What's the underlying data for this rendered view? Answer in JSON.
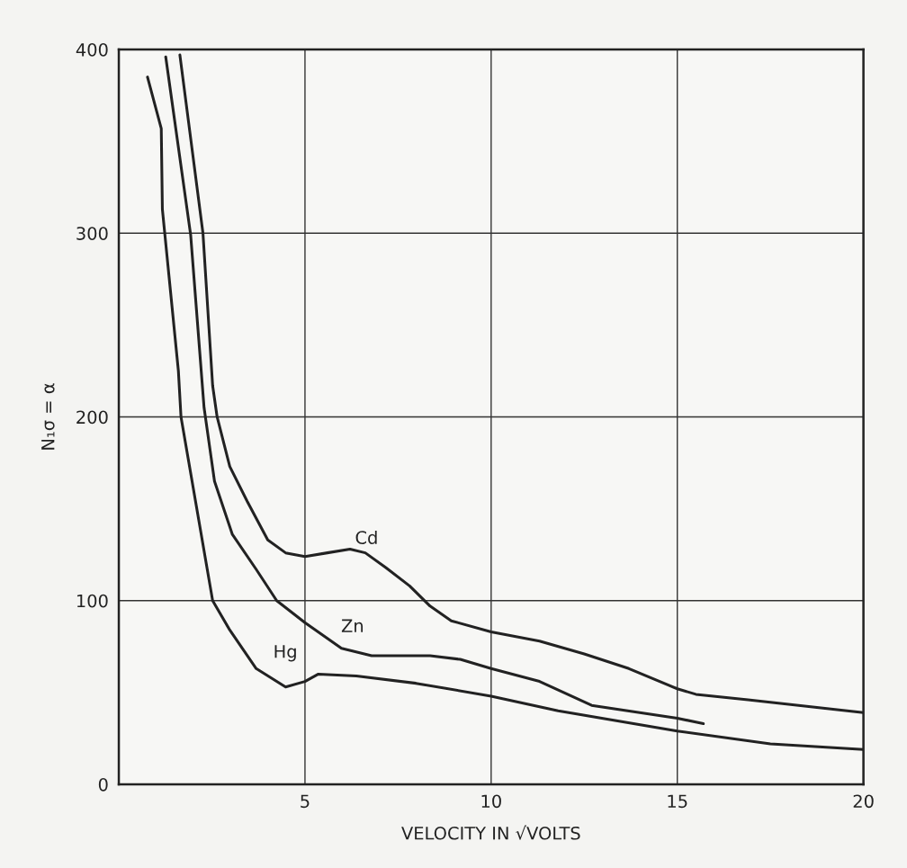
{
  "chart_data": {
    "type": "line",
    "xlabel": "VELOCITY IN √VOLTS",
    "ylabel": "N₁σ = α",
    "xlim": [
      0,
      20
    ],
    "xticks": [
      5,
      10,
      15,
      20
    ],
    "ylim": [
      0,
      400
    ],
    "yticks": [
      0,
      100,
      200,
      300,
      400
    ],
    "grid": true,
    "line_style": "solid",
    "series": [
      {
        "name": "Hg",
        "color": "#222222",
        "x": [
          0.77,
          1.14,
          1.17,
          1.6,
          1.67,
          2.52,
          2.98,
          3.69,
          4.48,
          5.0,
          5.36,
          6.38,
          7.98,
          10,
          11.8,
          15,
          17.5,
          20
        ],
        "values": [
          385,
          357,
          313,
          225,
          200,
          100,
          84,
          63,
          53,
          56,
          60,
          59,
          55,
          48,
          40,
          29,
          22,
          19
        ]
      },
      {
        "name": "Zn",
        "color": "#222222",
        "x": [
          1.26,
          1.93,
          2.29,
          2.57,
          3.05,
          3.69,
          4.24,
          5.0,
          5.98,
          6.79,
          7.64,
          8.36,
          9.17,
          10,
          11.3,
          12.7,
          15,
          15.7
        ],
        "values": [
          396,
          299,
          205,
          165,
          136,
          117,
          100,
          88,
          74,
          70,
          70,
          70,
          68,
          63,
          56,
          43,
          36,
          33
        ]
      },
      {
        "name": "Cd",
        "color": "#222222",
        "x": [
          1.64,
          2.26,
          2.52,
          2.64,
          2.98,
          3.45,
          4.0,
          4.48,
          5.0,
          5.6,
          6.21,
          6.62,
          7.17,
          7.81,
          8.36,
          8.93,
          10,
          11.3,
          12.5,
          13.7,
          15,
          15.5,
          16.9,
          20
        ],
        "values": [
          397,
          300,
          217,
          200,
          173,
          154,
          133,
          126,
          124,
          126,
          128,
          126,
          118,
          108,
          97,
          89,
          83,
          78,
          71,
          63,
          52,
          49,
          46,
          39
        ]
      }
    ]
  }
}
